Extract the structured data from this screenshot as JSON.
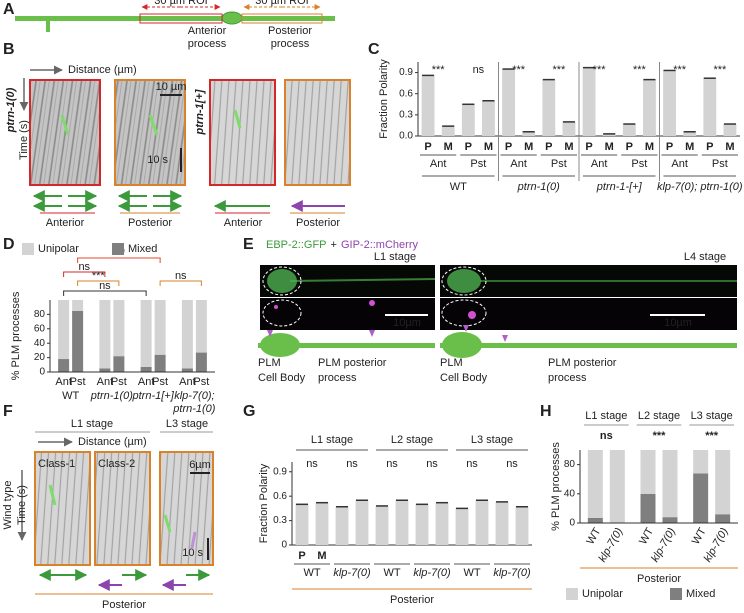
{
  "panel_labels": [
    "A",
    "B",
    "C",
    "D",
    "E",
    "F",
    "G",
    "H"
  ],
  "panel_a": {
    "roi_left": "30 µm ROI",
    "roi_right": "30 µm ROI",
    "anterior": [
      "Anterior",
      "process"
    ],
    "posterior": [
      "Posterior",
      "process"
    ]
  },
  "panel_b": {
    "distance": "Distance (µm)",
    "time": "Time (s)",
    "genotype_1": "ptrn-1(0)",
    "genotype_2": "ptrn-1[+]",
    "scale_x": "10 µm",
    "scale_t": "10 s",
    "captions": [
      "Anterior",
      "Posterior",
      "Anterior",
      "Posterior"
    ]
  },
  "panel_e": {
    "title_gfp": "EBP-2::GFP",
    "title_plus": "+",
    "title_mcherry": "GIP-2::mCherry",
    "stages": [
      "L1 stage",
      "L4 stage"
    ],
    "scale_bars": [
      "10µm",
      "10µm"
    ],
    "schematics": [
      {
        "cell_body": [
          "PLM",
          "Cell Body"
        ],
        "process": [
          "PLM posterior",
          "process"
        ]
      },
      {
        "cell_body": [
          "PLM",
          "Cell Body"
        ],
        "process": [
          "PLM posterior",
          "process"
        ]
      }
    ]
  },
  "panel_f": {
    "stages": [
      "L1 stage",
      "L3 stage"
    ],
    "distance": "Distance (µm)",
    "classes": [
      "Class-1",
      "Class-2"
    ],
    "scale_x": "6µm",
    "genotype": "Wind type",
    "time": "Time (s)",
    "scale_t": "10 s",
    "caption": "Posterior"
  },
  "chart_data": [
    {
      "type": "polarity",
      "ylabel": "Fraction Polarity",
      "ylim": [
        0,
        1.05
      ],
      "yticks": [
        {
          "value": 0,
          "label": "0.0"
        },
        0.3,
        0.6,
        0.9
      ],
      "categories": [
        "P",
        "M"
      ],
      "category_colors": [
        "#3c9a3c",
        "#7b3fa0"
      ],
      "category_labels": "every",
      "group_label_position": "bottom",
      "bar_color": "#d3d3d3",
      "groups": [
        {
          "name": "WT",
          "subgroups": [
            {
              "name": "Ant",
              "color": "#d62728",
              "significance": "***",
              "values": [
                0.86,
                0.14
              ]
            },
            {
              "name": "Pst",
              "color": "#d9822b",
              "significance": "ns",
              "values": [
                0.45,
                0.5
              ]
            }
          ]
        },
        {
          "name": "ptrn-1(0)",
          "subgroups": [
            {
              "name": "Ant",
              "color": "#d62728",
              "significance": "***",
              "values": [
                0.95,
                0.06
              ]
            },
            {
              "name": "Pst",
              "color": "#d9822b",
              "significance": "***",
              "values": [
                0.8,
                0.2
              ]
            }
          ]
        },
        {
          "name": "ptrn-1-[+]",
          "subgroups": [
            {
              "name": "Ant",
              "color": "#d62728",
              "significance": "***",
              "values": [
                0.97,
                0.03
              ]
            },
            {
              "name": "Pst",
              "color": "#d9822b",
              "significance": "***",
              "values": [
                0.17,
                0.8
              ]
            }
          ]
        },
        {
          "name": "klp-7(0); ptrn-1(0)",
          "subgroups": [
            {
              "name": "Ant",
              "color": "#d62728",
              "significance": "***",
              "values": [
                0.93,
                0.06
              ]
            },
            {
              "name": "Pst",
              "color": "#d9822b",
              "significance": "***",
              "values": [
                0.82,
                0.17
              ]
            }
          ]
        }
      ]
    },
    {
      "type": "stacked_bar",
      "ylabel": "% PLM processes",
      "ylim": [
        0,
        100
      ],
      "yticks": [
        0,
        20,
        40,
        60,
        80
      ],
      "category_colors": [
        "#d62728",
        "#d9822b"
      ],
      "category_rotate": false,
      "group_label_position": "bottom",
      "legend": "top",
      "groups": [
        {
          "name": "WT",
          "categories": [
            "Ant",
            "Pst"
          ]
        },
        {
          "name": "ptrn-1(0)",
          "categories": [
            "Ant",
            "Pst"
          ]
        },
        {
          "name": "ptrn-1[+]",
          "categories": [
            "Ant",
            "Pst"
          ]
        },
        {
          "name": [
            "klp-7(0);",
            "ptrn-1(0)"
          ],
          "categories": [
            "Ant",
            "Pst"
          ]
        }
      ],
      "series": [
        {
          "name": "Unipolar",
          "color": "#d3d3d3",
          "values": [
            82,
            15,
            95,
            78,
            93,
            76,
            95,
            73
          ]
        },
        {
          "name": "Mixed",
          "color": "#7f7f7f",
          "values": [
            18,
            85,
            5,
            22,
            7,
            24,
            5,
            27
          ]
        }
      ],
      "comparisons": [
        {
          "label": "***",
          "color": "#e8452c"
        },
        {
          "label": "ns",
          "color": "#d62728"
        },
        {
          "label": "***",
          "color": "#d9822b"
        },
        {
          "label": "ns",
          "color": "#333333"
        },
        {
          "label": "ns",
          "color": "#d9822b"
        }
      ]
    },
    {
      "type": "polarity",
      "ylabel": "Fraction Polarity",
      "ylim": [
        0,
        1.02
      ],
      "yticks": [
        0,
        0.3,
        0.6,
        0.9
      ],
      "categories": [
        "P",
        "M"
      ],
      "category_colors": [
        "#3c9a3c",
        "#7b3fa0"
      ],
      "category_labels": "first",
      "group_label_position": "top",
      "bar_color": "#d3d3d3",
      "xlabel": "Posterior",
      "xlabel_color": "#d9822b",
      "groups": [
        {
          "name": "L1 stage",
          "subgroups": [
            {
              "name": "WT",
              "significance": "ns",
              "values": [
                0.5,
                0.52
              ]
            },
            {
              "name": "klp-7(0)",
              "significance": "ns",
              "values": [
                0.47,
                0.55
              ]
            }
          ]
        },
        {
          "name": "L2 stage",
          "subgroups": [
            {
              "name": "WT",
              "significance": "ns",
              "values": [
                0.48,
                0.55
              ]
            },
            {
              "name": "klp-7(0)",
              "significance": "ns",
              "values": [
                0.5,
                0.52
              ]
            }
          ]
        },
        {
          "name": "L3 stage",
          "subgroups": [
            {
              "name": "WT",
              "significance": "ns",
              "values": [
                0.45,
                0.55
              ]
            },
            {
              "name": "klp-7(0)",
              "significance": "ns",
              "values": [
                0.53,
                0.47
              ]
            }
          ]
        }
      ]
    },
    {
      "type": "stacked_bar",
      "ylabel": "% PLM processes",
      "ylim": [
        0,
        100
      ],
      "yticks": [
        0,
        40,
        80
      ],
      "category_rotate": true,
      "group_label_position": "top",
      "legend": "bottom",
      "significance_color": "#d9822b",
      "xlabel": "Posterior",
      "xlabel_color": "#d9822b",
      "groups": [
        {
          "name": "L1 stage",
          "significance": "ns",
          "categories": [
            "WT",
            "klp-7(0)"
          ]
        },
        {
          "name": "L2 stage",
          "significance": "***",
          "categories": [
            "WT",
            "klp-7(0)"
          ]
        },
        {
          "name": "L3 stage",
          "significance": "***",
          "categories": [
            "WT",
            "klp-7(0)"
          ]
        }
      ],
      "series": [
        {
          "name": "Unipolar",
          "color": "#d3d3d3",
          "values": [
            93,
            100,
            60,
            92,
            32,
            88
          ]
        },
        {
          "name": "Mixed",
          "color": "#7f7f7f",
          "values": [
            7,
            0,
            40,
            8,
            68,
            12
          ]
        }
      ]
    }
  ]
}
